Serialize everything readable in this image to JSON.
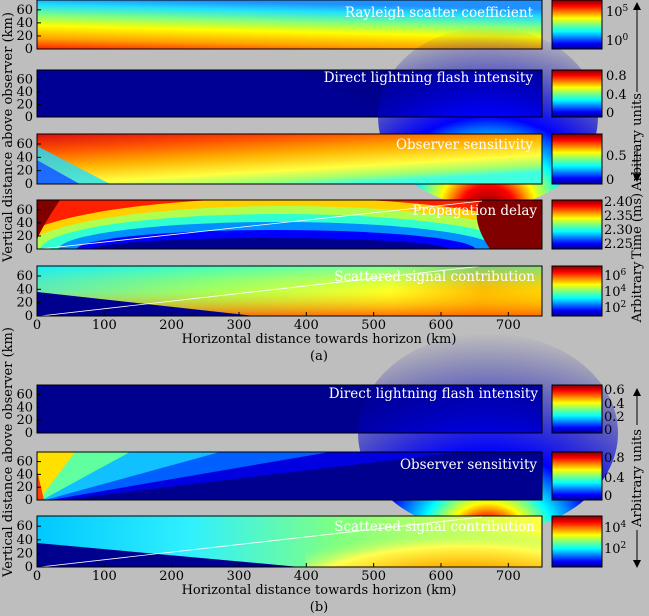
{
  "figure_a": {
    "caption": "(a)",
    "ylabel": "Vertical distance above observer  (km)",
    "xlabel": "Horizontal distance towards horizon  (km)",
    "right_label_top": "Arbitrary units",
    "right_label_mid": "Time (ms)",
    "right_label_bot": "Arbitrary"
  },
  "figure_b": {
    "caption": "(b)",
    "ylabel": "Vertical distance above observer  (km)",
    "xlabel": "Horizontal distance towards horizon  (km)",
    "right_label": "Arbitrary units"
  },
  "chart_data": [
    {
      "type": "heatmap",
      "id": "a1",
      "title": "Rayleigh scatter coefficient",
      "x_range": [
        0,
        750
      ],
      "y_range": [
        0,
        75
      ],
      "xlabel": "Horizontal distance towards horizon (km)",
      "ylabel": "Vertical distance above observer (km)",
      "colorbar_ticks": [
        "10^5",
        "10^0"
      ]
    },
    {
      "type": "heatmap",
      "id": "a2",
      "title": "Direct lightning flash intensity",
      "x_range": [
        0,
        750
      ],
      "y_range": [
        0,
        75
      ],
      "source_x_km": 670,
      "colorbar_ticks": [
        "0.8",
        "0.4",
        "0"
      ]
    },
    {
      "type": "heatmap",
      "id": "a3",
      "title": "Observer sensitivity",
      "x_range": [
        0,
        750
      ],
      "y_range": [
        0,
        75
      ],
      "colorbar_ticks": [
        "0.5",
        "0"
      ]
    },
    {
      "type": "heatmap",
      "id": "a4",
      "title": "Propagation delay",
      "x_range": [
        0,
        750
      ],
      "y_range": [
        0,
        75
      ],
      "colorbar_label": "Time (ms)",
      "colorbar_ticks": [
        "2.40",
        "2.35",
        "2.30",
        "2.25"
      ]
    },
    {
      "type": "heatmap",
      "id": "a5",
      "title": "Scattered signal contribution",
      "x_range": [
        0,
        750
      ],
      "y_range": [
        0,
        75
      ],
      "colorbar_ticks": [
        "10^6",
        "10^4",
        "10^2"
      ]
    },
    {
      "type": "heatmap",
      "id": "b1",
      "title": "Direct lightning flash intensity",
      "x_range": [
        0,
        750
      ],
      "y_range": [
        0,
        75
      ],
      "colorbar_ticks": [
        "0.6",
        "0.4",
        "0.2",
        "0"
      ]
    },
    {
      "type": "heatmap",
      "id": "b2",
      "title": "Observer sensitivity",
      "x_range": [
        0,
        750
      ],
      "y_range": [
        0,
        75
      ],
      "colorbar_ticks": [
        "0.8",
        "0.4",
        "0"
      ]
    },
    {
      "type": "heatmap",
      "id": "b3",
      "title": "Scattered signal contribution",
      "x_range": [
        0,
        750
      ],
      "y_range": [
        0,
        75
      ],
      "colorbar_ticks": [
        "10^4",
        "10^2"
      ]
    }
  ],
  "axis": {
    "x_ticks": [
      "0",
      "100",
      "200",
      "300",
      "400",
      "500",
      "600",
      "700"
    ],
    "y_ticks": [
      "0",
      "20",
      "40",
      "60"
    ]
  }
}
